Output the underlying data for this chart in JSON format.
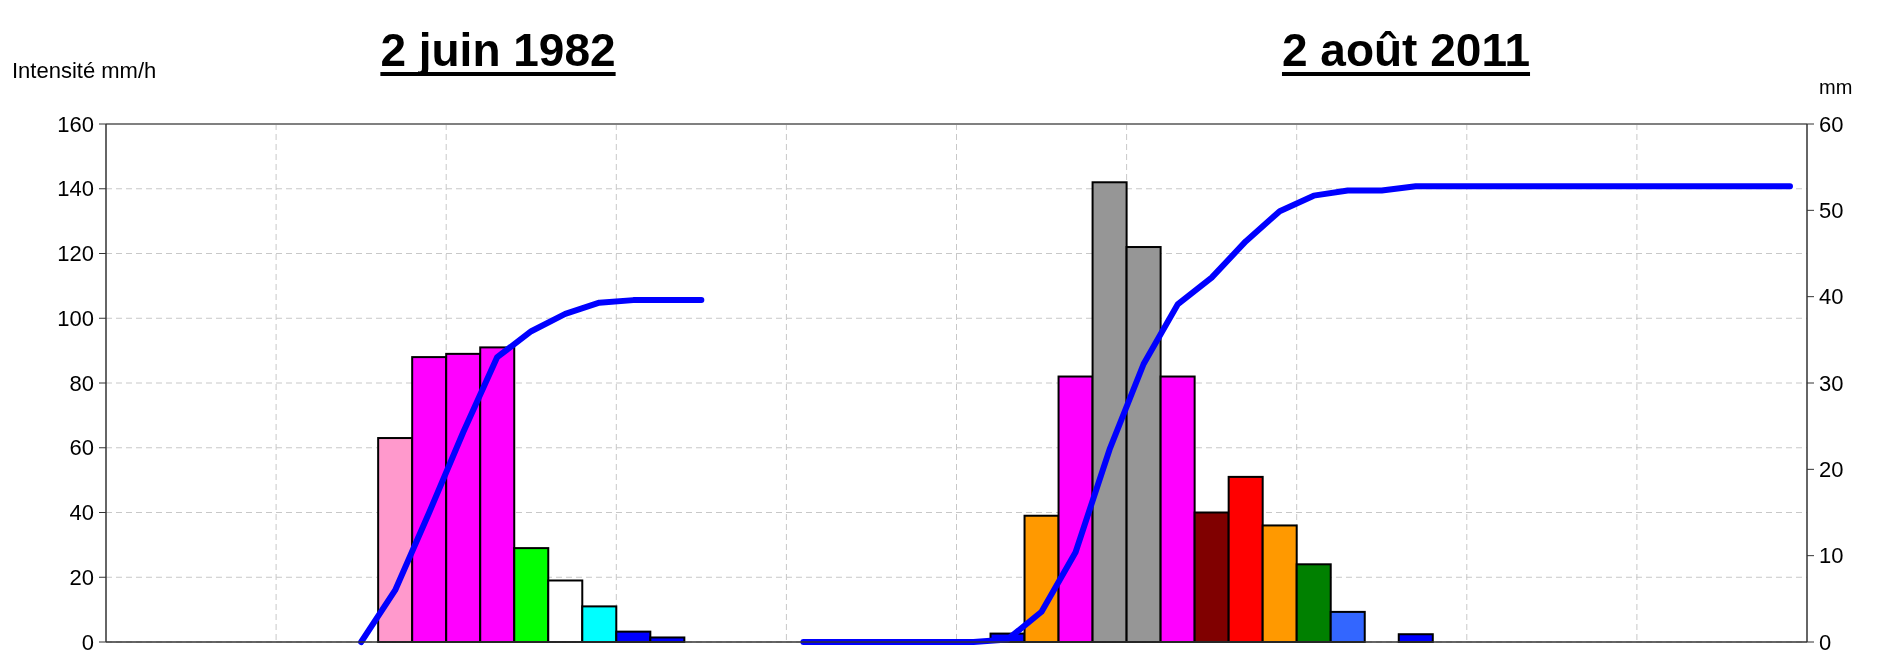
{
  "chart_data": {
    "type": "bar",
    "title": "2 juin 1982",
    "ylabel": "Intensité mm/h",
    "y2label": "mm",
    "annotations": [
      "2 août 2011"
    ],
    "categories": [
      null,
      null,
      null,
      null,
      null,
      null,
      null,
      null,
      null,
      null,
      null,
      null,
      null,
      null,
      null,
      null,
      null,
      null,
      null,
      null,
      null,
      null,
      null,
      null,
      null,
      null,
      null,
      null,
      null,
      null,
      null,
      null,
      null,
      null,
      null,
      null,
      null,
      null,
      null,
      null,
      null,
      null,
      null,
      null,
      null,
      null,
      null,
      null,
      null,
      null
    ],
    "series": [
      {
        "values": [
          null,
          null,
          null,
          null,
          null,
          null,
          null,
          null,
          63,
          88,
          89,
          91,
          29,
          19,
          11,
          3.2,
          1.4,
          null,
          null,
          null,
          null,
          null,
          null,
          null,
          null,
          null,
          2.6,
          39,
          82,
          142,
          122,
          82,
          40,
          51,
          36,
          24,
          9.3,
          null,
          2.4,
          null,
          null,
          null,
          null,
          null,
          null,
          null,
          null,
          null,
          null,
          null
        ],
        "colors": [
          null,
          null,
          null,
          null,
          null,
          null,
          null,
          null,
          "#ff99cc",
          "#ff00ff",
          "#ff00ff",
          "#ff00ff",
          "#00ff00",
          "#ffffff",
          "#00ffff",
          "#0000ff",
          "#0000ff",
          null,
          null,
          null,
          null,
          null,
          null,
          null,
          null,
          null,
          "#0000ff",
          "#ff9900",
          "#ff00ff",
          "#969696",
          "#969696",
          "#ff00ff",
          "#800000",
          "#ff0000",
          "#ff9900",
          "#008000",
          "#3366ff",
          null,
          "#0000ff",
          null,
          null,
          null,
          null,
          null,
          null,
          null,
          null,
          null,
          null,
          null
        ]
      },
      {
        "type": "line",
        "axis": "y2",
        "color": "#0000ff",
        "values": [
          null,
          null,
          null,
          null,
          null,
          null,
          null,
          0,
          6,
          15,
          24.3,
          33,
          36,
          38,
          39.3,
          39.6,
          39.6,
          39.6,
          null,
          null,
          null,
          null,
          null,
          null,
          null,
          null,
          null,
          null,
          null,
          null,
          null,
          null,
          null,
          null,
          null,
          null,
          null,
          null,
          null,
          null,
          null,
          null,
          null,
          null,
          null,
          null,
          null,
          null,
          null,
          null
        ]
      },
      {
        "type": "line",
        "axis": "y2",
        "color": "#0000ff",
        "values": [
          null,
          null,
          null,
          null,
          null,
          null,
          null,
          null,
          null,
          null,
          null,
          null,
          null,
          null,
          null,
          null,
          null,
          null,
          null,
          null,
          0,
          0,
          0,
          0,
          0,
          0,
          0.3,
          3.5,
          10.4,
          22.3,
          32.2,
          39.1,
          42.2,
          46.4,
          49.9,
          51.7,
          52.3,
          52.3,
          52.8,
          52.8,
          52.8,
          52.8,
          52.8,
          52.8,
          52.8,
          52.8,
          52.8,
          52.8,
          52.8,
          52.8
        ]
      }
    ],
    "ylim": [
      0,
      160
    ],
    "yticks": [
      0,
      20,
      40,
      60,
      80,
      100,
      120,
      140,
      160
    ],
    "y2lim": [
      0,
      60
    ],
    "y2ticks": [
      0,
      10,
      20,
      30,
      40,
      50,
      60
    ],
    "grid": true,
    "marker": "none"
  }
}
